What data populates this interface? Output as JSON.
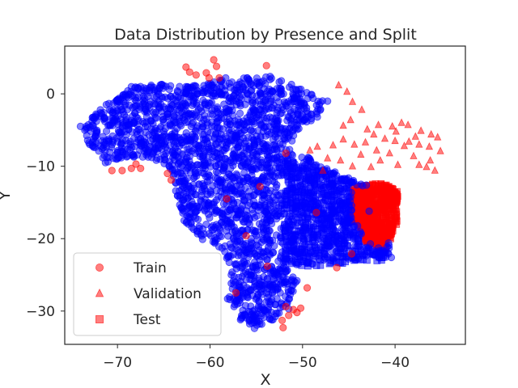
{
  "chart_data": {
    "type": "scatter",
    "title": "Data Distribution by Presence and Split",
    "xlabel": "X",
    "ylabel": "Y",
    "xlim": [
      -75.7,
      -32.4
    ],
    "ylim": [
      -34.6,
      6.6
    ],
    "x_ticks": [
      -70,
      -60,
      -50,
      -40
    ],
    "y_ticks": [
      0,
      -10,
      -20,
      -30
    ],
    "grid": false,
    "legend_position": "lower-left",
    "presence_colors": {
      "present": "#ff0000",
      "absent": "#0000ff"
    },
    "legend": [
      {
        "label": "Train",
        "marker": "circle",
        "color": "#ff0000"
      },
      {
        "label": "Validation",
        "marker": "triangle",
        "color": "#ff0000"
      },
      {
        "label": "Test",
        "marker": "square",
        "color": "#ff0000"
      }
    ],
    "series": [
      {
        "name": "Train",
        "marker": "circle",
        "points_present": [
          [
            -62.6,
            3.7
          ],
          [
            -62.2,
            3.0
          ],
          [
            -61.5,
            2.6
          ],
          [
            -60.4,
            2.9
          ],
          [
            -60.1,
            2.2
          ],
          [
            -59.6,
            4.7
          ],
          [
            -59.3,
            3.8
          ],
          [
            -59.0,
            2.2
          ],
          [
            -53.9,
            3.9
          ],
          [
            -68.5,
            -10.3
          ],
          [
            -68.0,
            -9.7
          ],
          [
            -67.5,
            -10.3
          ],
          [
            -69.5,
            -10.6
          ],
          [
            -70.6,
            -10.6
          ],
          [
            -64.6,
            -11.0
          ],
          [
            -64.2,
            -11.9
          ],
          [
            -51.8,
            -29.4
          ],
          [
            -51.5,
            -30.6
          ],
          [
            -51.0,
            -29.8
          ],
          [
            -50.2,
            -29.6
          ],
          [
            -50.6,
            -30.2
          ],
          [
            -52.2,
            -31.3
          ],
          [
            -52.1,
            -32.3
          ],
          [
            -58.2,
            -14.5
          ],
          [
            -56.1,
            -19.6
          ],
          [
            -53.8,
            -23.8
          ],
          [
            -49.5,
            -26.8
          ],
          [
            -48.5,
            -16.4
          ],
          [
            -46.3,
            -24.0
          ],
          [
            -44.7,
            -22.1
          ],
          [
            -57.2,
            -27.5
          ],
          [
            -54.6,
            -12.8
          ],
          [
            -51.8,
            -8.2
          ]
        ],
        "points_absent_outline": [
          [
            -74.0,
            -4.5
          ],
          [
            -71.2,
            -1.5
          ],
          [
            -68.5,
            1.0
          ],
          [
            -65.2,
            1.3
          ],
          [
            -62.6,
            1.0
          ],
          [
            -60.2,
            1.4
          ],
          [
            -58.3,
            2.2
          ],
          [
            -56.0,
            2.2
          ],
          [
            -53.5,
            2.4
          ],
          [
            -51.2,
            1.3
          ],
          [
            -49.0,
            -0.1
          ],
          [
            -47.3,
            -1.0
          ],
          [
            -48.4,
            -3.2
          ],
          [
            -50.4,
            -4.8
          ],
          [
            -51.4,
            -7.7
          ],
          [
            -49.4,
            -8.8
          ],
          [
            -46.5,
            -10.8
          ],
          [
            -43.1,
            -12.6
          ],
          [
            -42.8,
            -16.2
          ],
          [
            -40.7,
            -20.6
          ],
          [
            -40.4,
            -22.6
          ],
          [
            -44.3,
            -22.9
          ],
          [
            -48.9,
            -23.5
          ],
          [
            -52.0,
            -23.8
          ],
          [
            -50.6,
            -25.8
          ],
          [
            -51.5,
            -29.7
          ],
          [
            -53.2,
            -31.2
          ],
          [
            -55.2,
            -32.4
          ],
          [
            -56.7,
            -31.2
          ],
          [
            -58.1,
            -28.3
          ],
          [
            -57.7,
            -25.0
          ],
          [
            -58.4,
            -21.8
          ],
          [
            -60.8,
            -20.1
          ],
          [
            -62.8,
            -17.5
          ],
          [
            -63.7,
            -13.4
          ],
          [
            -64.3,
            -10.3
          ],
          [
            -66.3,
            -8.8
          ],
          [
            -69.0,
            -8.7
          ],
          [
            -71.3,
            -9.5
          ],
          [
            -73.0,
            -7.0
          ]
        ]
      },
      {
        "name": "Validation",
        "marker": "triangle",
        "points_present": [
          [
            -46.1,
            1.2
          ],
          [
            -45.2,
            0.3
          ],
          [
            -44.6,
            -1.1
          ],
          [
            -43.6,
            -2.2
          ],
          [
            -44.8,
            -3.6
          ],
          [
            -45.6,
            -4.4
          ],
          [
            -43.0,
            -4.9
          ],
          [
            -41.8,
            -4.3
          ],
          [
            -40.3,
            -4.5
          ],
          [
            -39.3,
            -4.0
          ],
          [
            -38.6,
            -4.3
          ],
          [
            -37.2,
            -5.1
          ],
          [
            -36.1,
            -5.6
          ],
          [
            -35.4,
            -6.0
          ],
          [
            -35.1,
            -7.9
          ],
          [
            -36.3,
            -7.3
          ],
          [
            -37.4,
            -7.0
          ],
          [
            -38.5,
            -6.6
          ],
          [
            -39.0,
            -7.2
          ],
          [
            -40.0,
            -6.5
          ],
          [
            -41.1,
            -6.2
          ],
          [
            -42.0,
            -7.8
          ],
          [
            -43.2,
            -6.7
          ],
          [
            -44.4,
            -7.0
          ],
          [
            -45.6,
            -6.3
          ],
          [
            -46.7,
            -7.1
          ],
          [
            -47.3,
            -8.9
          ],
          [
            -45.9,
            -9.2
          ],
          [
            -43.7,
            -8.4
          ],
          [
            -41.6,
            -9.2
          ],
          [
            -39.7,
            -9.8
          ],
          [
            -38.0,
            -8.6
          ],
          [
            -36.2,
            -9.2
          ],
          [
            -35.7,
            -10.6
          ],
          [
            -36.6,
            -10.1
          ],
          [
            -37.4,
            -9.8
          ],
          [
            -40.6,
            -8.2
          ],
          [
            -42.6,
            -10.1
          ],
          [
            -44.6,
            -10.0
          ],
          [
            -48.4,
            -7.3
          ],
          [
            -49.2,
            -7.8
          ],
          [
            -47.8,
            -10.6
          ],
          [
            -42.3,
            -5.6
          ],
          [
            -39.9,
            -5.2
          ],
          [
            -37.8,
            -5.9
          ]
        ]
      },
      {
        "name": "Test",
        "marker": "square",
        "cluster_present": {
          "x": [
            -44.6,
            -39.7
          ],
          "y": [
            -23.0,
            -12.1
          ]
        },
        "points_absent": {
          "x": [
            -52.0,
            -40.6
          ],
          "y": [
            -23.8,
            -8.5
          ]
        }
      }
    ]
  }
}
